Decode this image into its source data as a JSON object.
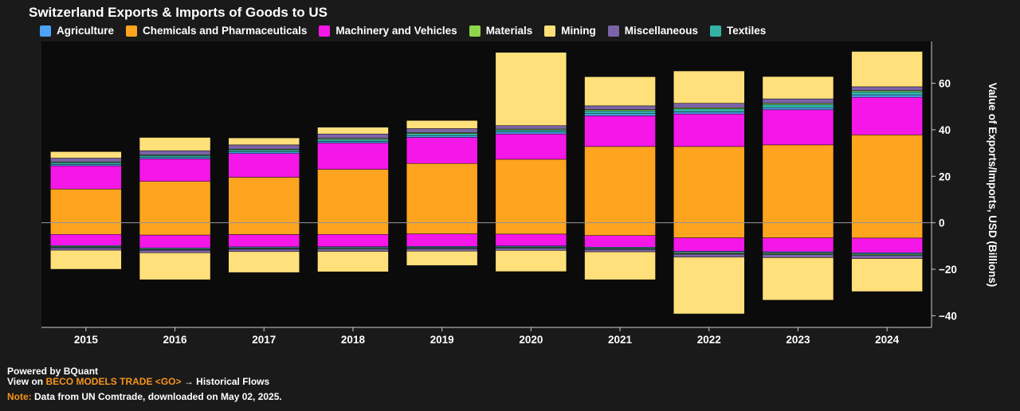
{
  "chart_data": {
    "type": "bar",
    "stacked": true,
    "title": "Switzerland Exports & Imports of Goods to US",
    "ylabel": "Value of Exports/Imports, USD (Billions)",
    "xlabel": "",
    "ylim": [
      -45,
      78
    ],
    "yticks": [
      -40,
      -20,
      0,
      20,
      40,
      60
    ],
    "categories": [
      "2015",
      "2016",
      "2017",
      "2018",
      "2019",
      "2020",
      "2021",
      "2022",
      "2023",
      "2024"
    ],
    "colors": {
      "Agriculture": "#4da3f5",
      "Chemicals and Pharmaceuticals": "#ffa41f",
      "Machinery and Vehicles": "#f516e8",
      "Materials": "#8ed64b",
      "Mining": "#ffe07a",
      "Miscellaneous": "#7b63a8",
      "Textiles": "#33b3a6"
    },
    "legend": [
      "Agriculture",
      "Chemicals and Pharmaceuticals",
      "Machinery and Vehicles",
      "Materials",
      "Mining",
      "Miscellaneous",
      "Textiles"
    ],
    "exports": [
      {
        "name": "Chemicals and Pharmaceuticals",
        "values": [
          14.5,
          17.8,
          19.6,
          23.0,
          25.5,
          27.3,
          32.8,
          32.8,
          33.5,
          37.8
        ]
      },
      {
        "name": "Machinery and Vehicles",
        "values": [
          10.0,
          9.7,
          10.2,
          11.3,
          11.2,
          10.9,
          13.2,
          14.0,
          15.1,
          16.2
        ]
      },
      {
        "name": "Agriculture",
        "values": [
          0.6,
          0.6,
          0.7,
          0.7,
          0.8,
          0.8,
          0.9,
          0.9,
          0.9,
          1.0
        ]
      },
      {
        "name": "Textiles",
        "values": [
          0.8,
          0.8,
          0.9,
          0.9,
          0.9,
          0.9,
          1.3,
          1.3,
          1.4,
          1.4
        ]
      },
      {
        "name": "Materials",
        "values": [
          0.3,
          0.3,
          0.3,
          0.4,
          0.4,
          0.4,
          0.5,
          0.5,
          0.5,
          0.5
        ]
      },
      {
        "name": "Miscellaneous",
        "values": [
          1.6,
          1.8,
          1.8,
          1.9,
          1.7,
          1.5,
          1.6,
          1.9,
          1.9,
          1.6
        ]
      },
      {
        "name": "Mining",
        "values": [
          2.8,
          5.7,
          3.0,
          2.9,
          3.5,
          31.5,
          12.5,
          13.9,
          9.6,
          15.2
        ]
      }
    ],
    "imports": [
      {
        "name": "Chemicals and Pharmaceuticals",
        "values": [
          -5.0,
          -5.3,
          -5.1,
          -5.0,
          -4.8,
          -4.9,
          -5.5,
          -6.5,
          -6.5,
          -6.6
        ]
      },
      {
        "name": "Machinery and Vehicles",
        "values": [
          -4.8,
          -5.5,
          -5.3,
          -5.3,
          -5.4,
          -5.1,
          -5.0,
          -5.8,
          -6.0,
          -6.3
        ]
      },
      {
        "name": "Agriculture",
        "values": [
          -0.4,
          -0.4,
          -0.4,
          -0.4,
          -0.4,
          -0.4,
          -0.4,
          -0.5,
          -0.5,
          -0.5
        ]
      },
      {
        "name": "Materials",
        "values": [
          -0.3,
          -0.3,
          -0.3,
          -0.3,
          -0.3,
          -0.3,
          -0.3,
          -0.4,
          -0.4,
          -0.4
        ]
      },
      {
        "name": "Textiles",
        "values": [
          -0.3,
          -0.3,
          -0.3,
          -0.3,
          -0.3,
          -0.3,
          -0.3,
          -0.3,
          -0.3,
          -0.3
        ]
      },
      {
        "name": "Miscellaneous",
        "values": [
          -1.0,
          -1.1,
          -1.0,
          -1.0,
          -1.0,
          -0.9,
          -1.0,
          -1.3,
          -1.3,
          -1.3
        ]
      },
      {
        "name": "Mining",
        "values": [
          -8.2,
          -11.6,
          -9.0,
          -8.8,
          -6.2,
          -9.1,
          -12.0,
          -24.4,
          -18.3,
          -14.2
        ]
      }
    ]
  },
  "footer": {
    "powered": "Powered by BQuant",
    "view_prefix": "View on ",
    "view_link": "BECO MODELS TRADE <GO>",
    "view_suffix": " → Historical Flows",
    "note_label": "Note:",
    "note_text": " Data from UN Comtrade, downloaded on May 02, 2025."
  }
}
